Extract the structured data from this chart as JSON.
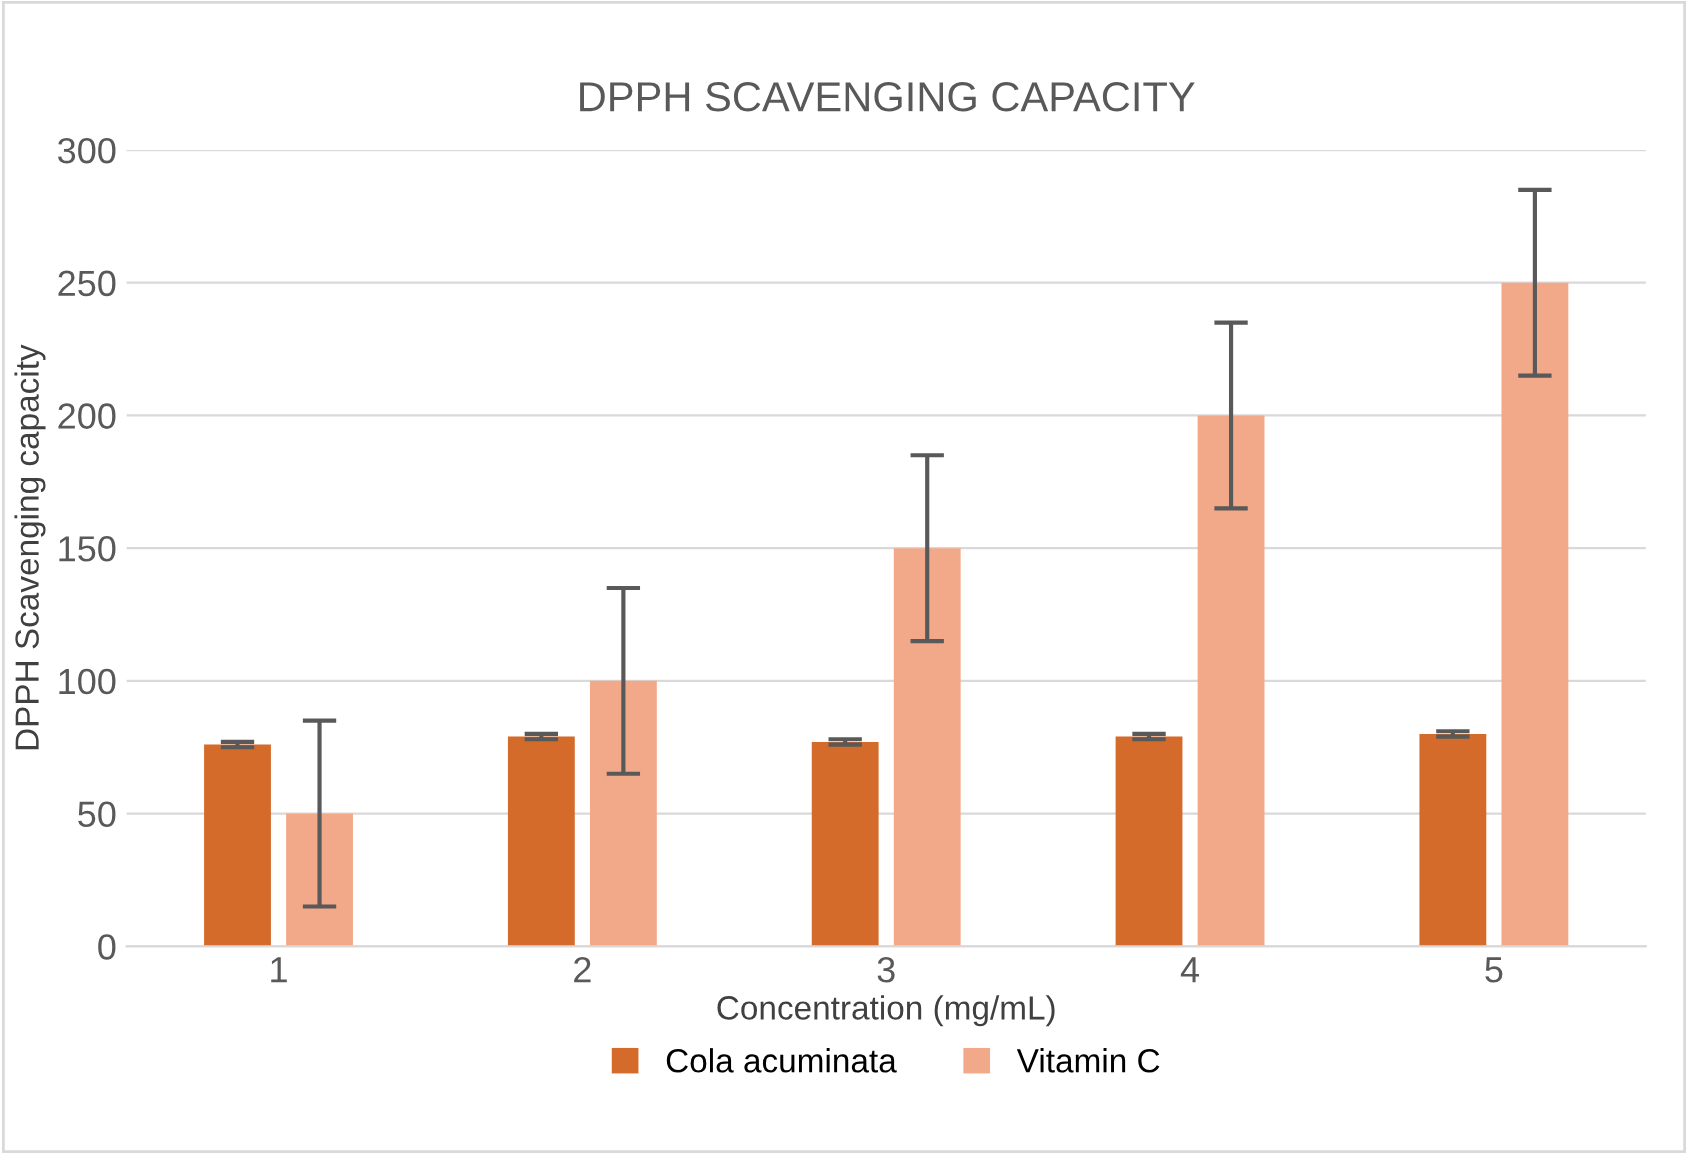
{
  "chart_data": {
    "type": "bar",
    "title": "DPPH SCAVENGING CAPACITY",
    "xlabel": "Concentration (mg/mL)",
    "ylabel": "DPPH Scavenging capacity",
    "categories": [
      "1",
      "2",
      "3",
      "4",
      "5"
    ],
    "series": [
      {
        "name": "Cola acuminata",
        "color": "#d46b2a",
        "values": [
          76,
          79,
          77,
          79,
          80
        ],
        "errors": [
          1,
          1,
          1,
          1,
          1
        ]
      },
      {
        "name": "Vitamin C",
        "color": "#f2a98a",
        "values": [
          50,
          100,
          150,
          200,
          250
        ],
        "errors": [
          35,
          35,
          35,
          35,
          35
        ]
      }
    ],
    "ylim": [
      0,
      300
    ],
    "yticks": [
      0,
      50,
      100,
      150,
      200,
      250,
      300
    ],
    "grid": "y",
    "legend": "bottom"
  }
}
